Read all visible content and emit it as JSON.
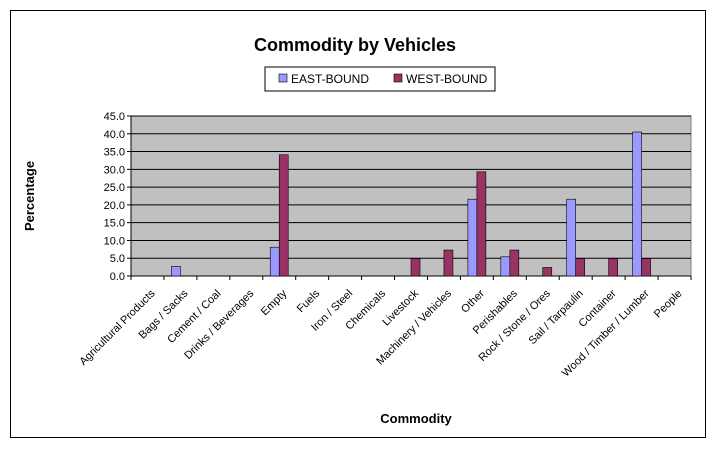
{
  "chart_data": {
    "type": "bar",
    "title": "Commodity by Vehicles",
    "xlabel": "Commodity",
    "ylabel": "Percentage",
    "ylim": [
      0,
      45
    ],
    "yticks": [
      "0.0",
      "5.0",
      "10.0",
      "15.0",
      "20.0",
      "25.0",
      "30.0",
      "35.0",
      "40.0",
      "45.0"
    ],
    "grid": true,
    "legend_position": "top-center",
    "categories": [
      "Agricultural Products",
      "Bags / Sacks",
      "Cement / Coal",
      "Drinks / Beverages",
      "Empty",
      "Fuels",
      "Iron / Steel",
      "Chemicals",
      "Livestock",
      "Machinery / Vehicles",
      "Other",
      "Perishables",
      "Rock / Stone / Ores",
      "Sail / Tarpaulin",
      "Container",
      "Wood / Timber / Lumber",
      "People"
    ],
    "series": [
      {
        "name": "EAST-BOUND",
        "color": "#9999ff",
        "values": [
          0,
          2.7,
          0,
          0,
          8.1,
          0,
          0,
          0,
          0,
          0,
          21.6,
          5.4,
          0,
          21.6,
          0,
          40.5,
          0
        ]
      },
      {
        "name": "WEST-BOUND",
        "color": "#993366",
        "values": [
          0,
          0,
          0,
          0,
          34.1,
          0,
          0,
          0,
          4.9,
          7.3,
          29.3,
          7.3,
          2.4,
          4.9,
          4.9,
          4.9,
          0
        ]
      }
    ],
    "plot_background": "#c0c0c0"
  }
}
